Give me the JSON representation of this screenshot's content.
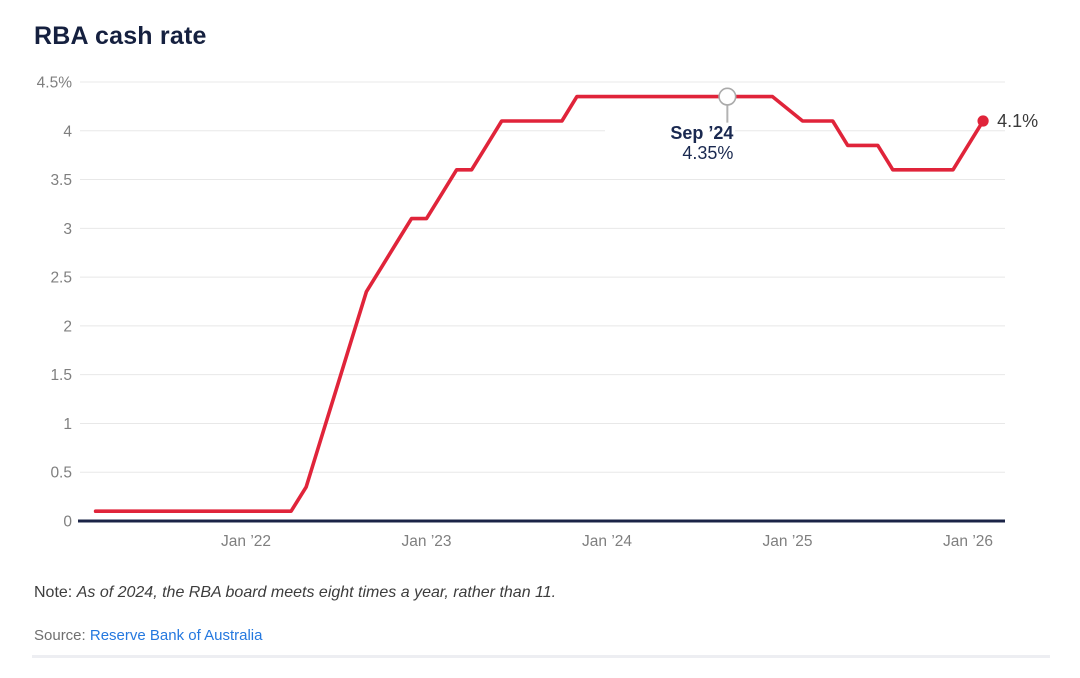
{
  "title": "RBA cash rate",
  "colors": {
    "line_red": "#e0243a",
    "axis_navy": "#1b2447",
    "grid_gray": "#e8e8e8",
    "tick_gray": "#7f7f7f",
    "tooltip_navy": "#1a2950",
    "end_label_gray": "#3a3a3a",
    "marker_ring_gray": "#aaaaaa",
    "link_blue": "#2478df",
    "note_gray": "#3d3d3d",
    "source_gray": "#6f6f6f"
  },
  "chart_data": {
    "type": "line",
    "title": "RBA cash rate",
    "ylabel": "",
    "xlabel": "",
    "ylim": [
      0,
      4.5
    ],
    "grid": "horizontal",
    "legend_position": "none",
    "y_ticks": [
      {
        "label": "4.5%",
        "value": 4.5
      },
      {
        "label": "4",
        "value": 4
      },
      {
        "label": "3.5",
        "value": 3.5
      },
      {
        "label": "3",
        "value": 3
      },
      {
        "label": "2.5",
        "value": 2.5
      },
      {
        "label": "2",
        "value": 2
      },
      {
        "label": "1.5",
        "value": 1.5
      },
      {
        "label": "1",
        "value": 1
      },
      {
        "label": "0.5",
        "value": 0.5
      },
      {
        "label": "0",
        "value": 0
      }
    ],
    "x_ticks": [
      {
        "label": "Jan ’22",
        "month": "2022-01"
      },
      {
        "label": "Jan ’23",
        "month": "2023-01"
      },
      {
        "label": "Jan ’24",
        "month": "2024-01"
      },
      {
        "label": "Jan ’25",
        "month": "2025-01"
      },
      {
        "label": "Jan ’26",
        "month": "2026-01"
      }
    ],
    "series": [
      {
        "name": "RBA cash rate (%)",
        "points": [
          [
            "2021-03",
            0.1
          ],
          [
            "2022-04",
            0.1
          ],
          [
            "2022-05",
            0.35
          ],
          [
            "2022-06",
            0.85
          ],
          [
            "2022-07",
            1.35
          ],
          [
            "2022-08",
            1.85
          ],
          [
            "2022-09",
            2.35
          ],
          [
            "2022-10",
            2.6
          ],
          [
            "2022-11",
            2.85
          ],
          [
            "2022-12",
            3.1
          ],
          [
            "2023-01",
            3.1
          ],
          [
            "2023-02",
            3.35
          ],
          [
            "2023-03",
            3.6
          ],
          [
            "2023-04",
            3.6
          ],
          [
            "2023-05",
            3.85
          ],
          [
            "2023-06",
            4.1
          ],
          [
            "2023-10",
            4.1
          ],
          [
            "2023-11",
            4.35
          ],
          [
            "2024-12",
            4.35
          ],
          [
            "2025-02",
            4.1
          ],
          [
            "2025-04",
            4.1
          ],
          [
            "2025-05",
            3.85
          ],
          [
            "2025-07",
            3.85
          ],
          [
            "2025-08",
            3.6
          ],
          [
            "2025-12",
            3.6
          ],
          [
            "2026-01",
            3.85
          ],
          [
            "2026-02",
            4.1
          ]
        ]
      }
    ],
    "annotation": {
      "month": "2024-09",
      "value": 4.35,
      "line1": "Sep ’24",
      "line2": "4.35%"
    },
    "end_label": "4.1%",
    "end_value": 4.1
  },
  "note": {
    "prefix": "Note:",
    "text": "As of 2024, the RBA board meets eight times a year, rather than 11."
  },
  "source": {
    "prefix": "Source:",
    "link_text": "Reserve Bank of Australia"
  }
}
